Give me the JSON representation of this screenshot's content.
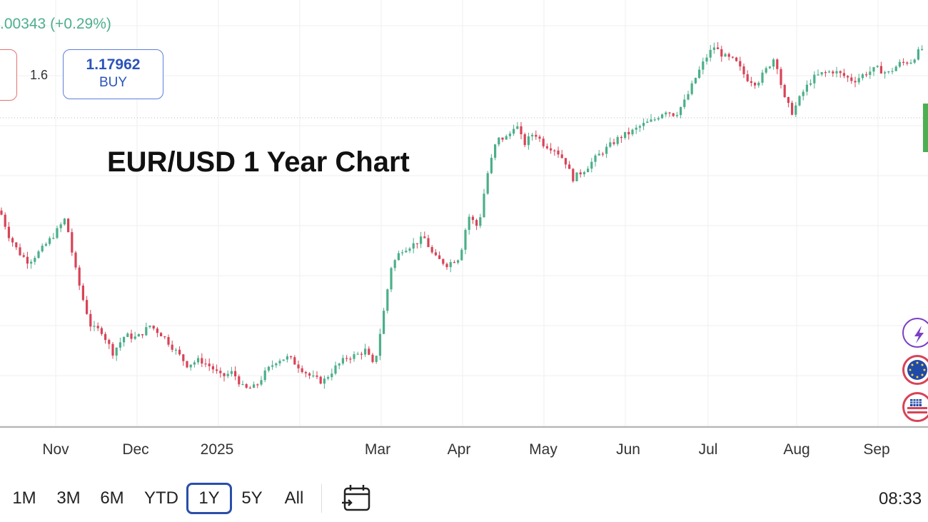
{
  "header": {
    "change": ".00343 (+0.29%)",
    "spread": "1.6",
    "buy_price": "1.17962",
    "buy_label": "BUY"
  },
  "chart_data": {
    "type": "candlestick",
    "title": "EUR/USD 1 Year Chart",
    "x_tick_labels": [
      "Nov",
      "Dec",
      "2025",
      "Mar",
      "Apr",
      "May",
      "Jun",
      "Jul",
      "Aug",
      "Sep"
    ],
    "ylim": [
      1.015,
      1.19
    ],
    "grid": true,
    "close_series": [
      [
        0,
        1.104
      ],
      [
        12,
        1.094
      ],
      [
        26,
        1.087
      ],
      [
        40,
        1.083
      ],
      [
        58,
        1.088
      ],
      [
        78,
        1.095
      ],
      [
        92,
        1.101
      ],
      [
        104,
        1.082
      ],
      [
        114,
        1.07
      ],
      [
        128,
        1.056
      ],
      [
        142,
        1.055
      ],
      [
        158,
        1.046
      ],
      [
        175,
        1.053
      ],
      [
        192,
        1.052
      ],
      [
        210,
        1.057
      ],
      [
        228,
        1.053
      ],
      [
        248,
        1.046
      ],
      [
        262,
        1.041
      ],
      [
        280,
        1.043
      ],
      [
        296,
        1.04
      ],
      [
        310,
        1.036
      ],
      [
        326,
        1.038
      ],
      [
        342,
        1.031
      ],
      [
        358,
        1.032
      ],
      [
        372,
        1.038
      ],
      [
        388,
        1.043
      ],
      [
        404,
        1.044
      ],
      [
        420,
        1.04
      ],
      [
        436,
        1.036
      ],
      [
        452,
        1.034
      ],
      [
        470,
        1.04
      ],
      [
        486,
        1.044
      ],
      [
        500,
        1.045
      ],
      [
        512,
        1.047
      ],
      [
        524,
        1.04
      ],
      [
        536,
        1.06
      ],
      [
        548,
        1.081
      ],
      [
        562,
        1.088
      ],
      [
        578,
        1.09
      ],
      [
        594,
        1.093
      ],
      [
        608,
        1.085
      ],
      [
        626,
        1.082
      ],
      [
        644,
        1.085
      ],
      [
        656,
        1.102
      ],
      [
        670,
        1.097
      ],
      [
        682,
        1.118
      ],
      [
        696,
        1.133
      ],
      [
        712,
        1.134
      ],
      [
        722,
        1.14
      ],
      [
        734,
        1.131
      ],
      [
        748,
        1.136
      ],
      [
        762,
        1.131
      ],
      [
        778,
        1.129
      ],
      [
        792,
        1.124
      ],
      [
        802,
        1.117
      ],
      [
        820,
        1.121
      ],
      [
        836,
        1.126
      ],
      [
        852,
        1.13
      ],
      [
        868,
        1.134
      ],
      [
        884,
        1.136
      ],
      [
        900,
        1.139
      ],
      [
        916,
        1.141
      ],
      [
        932,
        1.145
      ],
      [
        946,
        1.143
      ],
      [
        960,
        1.149
      ],
      [
        974,
        1.158
      ],
      [
        988,
        1.166
      ],
      [
        1000,
        1.171
      ],
      [
        1014,
        1.167
      ],
      [
        1030,
        1.165
      ],
      [
        1046,
        1.158
      ],
      [
        1060,
        1.156
      ],
      [
        1072,
        1.161
      ],
      [
        1086,
        1.167
      ],
      [
        1098,
        1.15
      ],
      [
        1110,
        1.144
      ],
      [
        1124,
        1.152
      ],
      [
        1138,
        1.158
      ],
      [
        1152,
        1.16
      ],
      [
        1168,
        1.161
      ],
      [
        1182,
        1.159
      ],
      [
        1196,
        1.157
      ],
      [
        1212,
        1.16
      ],
      [
        1228,
        1.162
      ],
      [
        1244,
        1.16
      ],
      [
        1260,
        1.164
      ],
      [
        1276,
        1.165
      ],
      [
        1290,
        1.17
      ]
    ]
  },
  "toolbar": {
    "ranges": [
      "1M",
      "3M",
      "6M",
      "YTD",
      "1Y",
      "5Y",
      "All"
    ],
    "active_range": "1Y",
    "clock": "08:33"
  },
  "colors": {
    "up": "#4caf8a",
    "down": "#d84357",
    "grid": "#efefef",
    "accent": "#2a4ea8"
  },
  "icons": [
    "calendar-range-icon",
    "lightning-icon",
    "eu-flag-icon",
    "us-flag-icon"
  ]
}
